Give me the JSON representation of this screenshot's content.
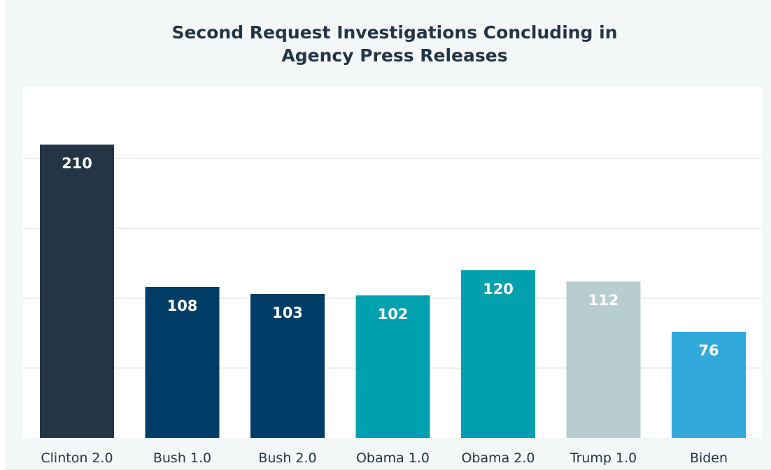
{
  "chart_data": {
    "type": "bar",
    "title": [
      "Second Request Investigations Concluding in",
      "Agency Press Releases"
    ],
    "categories": [
      "Clinton 2.0",
      "Bush 1.0",
      "Bush 2.0",
      "Obama 1.0",
      "Obama 2.0",
      "Trump 1.0",
      "Biden"
    ],
    "values": [
      210,
      108,
      103,
      102,
      120,
      112,
      76
    ],
    "colors": [
      "#243545",
      "#003d66",
      "#003d66",
      "#00a0ae",
      "#00a0ae",
      "#b7cdd0",
      "#31a9da"
    ],
    "label_colors": [
      "#ffffff",
      "#ffffff",
      "#ffffff",
      "#ffffff",
      "#ffffff",
      "#ffffff",
      "#ffffff"
    ],
    "ylim": [
      0,
      250
    ],
    "gridlines": [
      50,
      100,
      150,
      200
    ],
    "grid": true,
    "legend": false,
    "xlabel": "",
    "ylabel": ""
  }
}
